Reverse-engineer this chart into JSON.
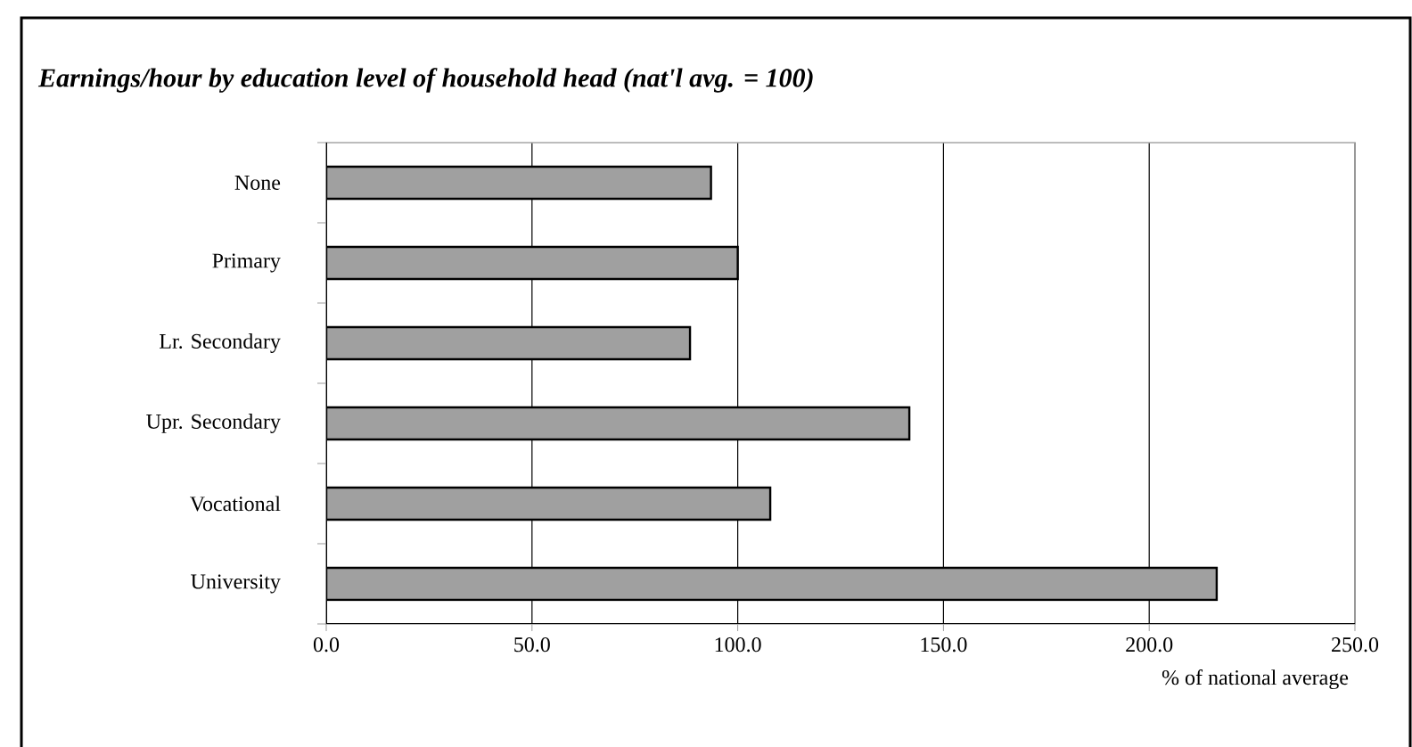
{
  "chart_data": {
    "type": "bar",
    "orientation": "horizontal",
    "title": "Earnings/hour by education level of household head (nat'l avg. = 100)",
    "xlabel": "% of national average",
    "categories": [
      "None",
      "Primary",
      "Lr. Secondary",
      "Upr. Secondary",
      "Vocational",
      "University"
    ],
    "values": [
      93.5,
      100,
      88.4,
      141.7,
      107.9,
      216.4
    ],
    "color": "#a0a0a0",
    "xlim": [
      0,
      250
    ],
    "xticks": [
      {
        "value": 0,
        "label": "0.0"
      },
      {
        "value": 50,
        "label": "50.0"
      },
      {
        "value": 100,
        "label": "100.0"
      },
      {
        "value": 150,
        "label": "150.0"
      },
      {
        "value": 200,
        "label": "200.0"
      },
      {
        "value": 250,
        "label": "250.0"
      }
    ],
    "grid": "x"
  }
}
